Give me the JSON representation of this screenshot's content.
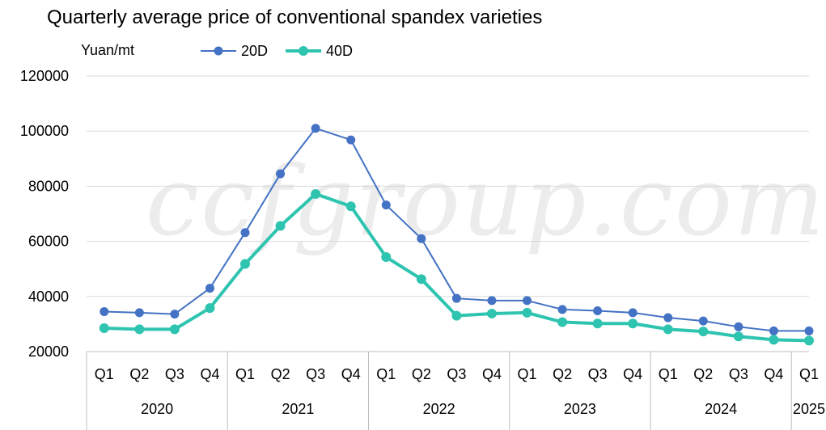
{
  "chart_data": {
    "type": "line",
    "title": "Quarterly average price of conventional spandex varieties",
    "ylabel": "Yuan/mt",
    "ylim": [
      20000,
      120000
    ],
    "yticks": [
      20000,
      40000,
      60000,
      80000,
      100000,
      120000
    ],
    "categories": [
      "Q1",
      "Q2",
      "Q3",
      "Q4",
      "Q1",
      "Q2",
      "Q3",
      "Q4",
      "Q1",
      "Q2",
      "Q3",
      "Q4",
      "Q1",
      "Q2",
      "Q3",
      "Q4",
      "Q1",
      "Q2",
      "Q3",
      "Q4",
      "Q1"
    ],
    "year_groups": [
      {
        "label": "2020",
        "span": 4
      },
      {
        "label": "2021",
        "span": 4
      },
      {
        "label": "2022",
        "span": 4
      },
      {
        "label": "2023",
        "span": 4
      },
      {
        "label": "2024",
        "span": 4
      },
      {
        "label": "2025",
        "span": 1
      }
    ],
    "series": [
      {
        "name": "20D",
        "color": "#4472C4",
        "values": [
          34500,
          34100,
          33600,
          43000,
          63200,
          84500,
          101000,
          96800,
          73200,
          61000,
          39300,
          38500,
          38500,
          35300,
          34800,
          34100,
          32300,
          31100,
          29000,
          27500,
          27500
        ]
      },
      {
        "name": "40D",
        "color": "#2EC4B0",
        "values": [
          28500,
          28100,
          28100,
          35800,
          51800,
          65600,
          77200,
          72700,
          54300,
          46300,
          33000,
          33800,
          34100,
          30700,
          30200,
          30200,
          28100,
          27300,
          25500,
          24300,
          24000
        ]
      }
    ],
    "grid": true,
    "legend": "top"
  },
  "watermark": "ccfgroup.com"
}
